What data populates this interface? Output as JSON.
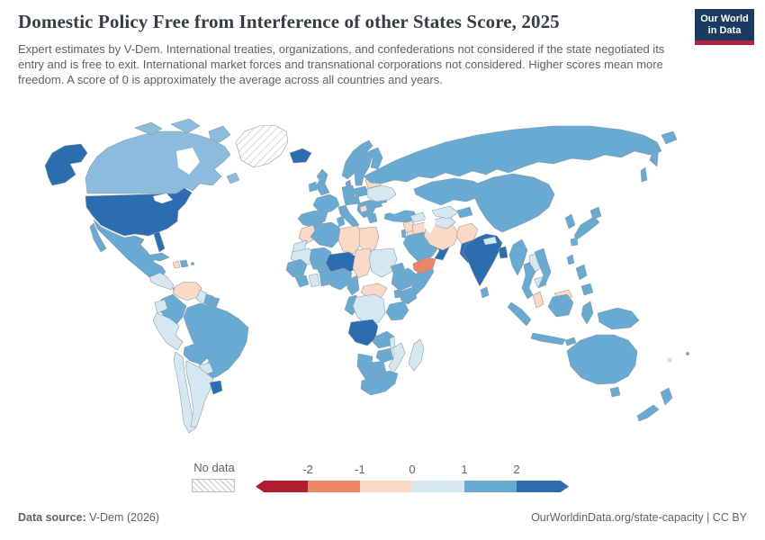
{
  "header": {
    "title": "Domestic Policy Free from Interference of other States Score, 2025",
    "subtitle": "Expert estimates by V-Dem. International treaties, organizations, and confederations not considered if the state negotiated its entry and is free to exit. International market forces and transnational corporations not considered. Higher scores mean more freedom. A score of 0 is approximately the average across all countries and years.",
    "logo": {
      "line1": "Our World",
      "line2": "in Data",
      "bg_color": "#1b3a5f",
      "accent_color": "#b6223c"
    }
  },
  "legend": {
    "no_data_label": "No data",
    "ticks": [
      "-2",
      "-1",
      "0",
      "1",
      "2"
    ],
    "colors": [
      "#b01c30",
      "#ee8567",
      "#fbd9c4",
      "#d5e7f1",
      "#69aad3",
      "#2c6db0"
    ]
  },
  "footer": {
    "source_label": "Data source:",
    "source_value": " V-Dem (2026)",
    "right_text": "OurWorldinData.org/state-capacity | CC BY"
  },
  "chart_data": {
    "type": "choropleth",
    "title": "Domestic Policy Free from Interference of other States Score, 2025",
    "value_range": [
      -2,
      2
    ],
    "legend_bins": [
      {
        "key": "b0",
        "range": "below -2"
      },
      {
        "key": "b1",
        "range": "-2 to -1"
      },
      {
        "key": "b2",
        "range": "-1 to 0"
      },
      {
        "key": "b3",
        "range": "0 to 1"
      },
      {
        "key": "b4",
        "range": "1 to 2"
      },
      {
        "key": "b4l",
        "range": "1 to 2 (lighter shade)"
      },
      {
        "key": "b5",
        "range": "above 2"
      },
      {
        "key": "nodata",
        "range": "No data"
      }
    ],
    "bin_colors": {
      "b0": "#b01c30",
      "b1": "#ee8567",
      "b2": "#fbd9c4",
      "b3": "#d5e7f1",
      "b4": "#69aad3",
      "b4l": "#8cbcdd",
      "b5": "#2c6db0",
      "nodata": "hatch"
    },
    "country_bins": {
      "alaska": "b5",
      "usa": "b5",
      "florida": "b5",
      "canada": "b4l",
      "arctic-islands-1": "b4l",
      "arctic-islands-2": "b4l",
      "arctic-islands-3": "b4l",
      "newfoundland": "b4l",
      "greenland": "nodata",
      "mexico": "b4",
      "baja": "b4",
      "central-america": "b3",
      "panama": "b4",
      "cuba": "b4",
      "haiti": "b2",
      "dominican-republic": "b4",
      "puerto-rico": "b4",
      "venezuela": "b2",
      "colombia": "b4",
      "guyana": "b3",
      "suriname": "b4",
      "french-guiana": "b4",
      "ecuador": "b3",
      "peru": "b3",
      "brazil": "b4",
      "bolivia": "b4",
      "paraguay": "b3",
      "chile": "b3",
      "argentina": "b3",
      "uruguay": "b5",
      "iceland": "b5",
      "uk": "b4",
      "ireland": "b4",
      "norway": "b4",
      "sweden": "b4",
      "finland": "b4",
      "denmark": "b4",
      "baltics": "b4",
      "poland": "b4",
      "germany": "b4",
      "france": "b4",
      "iberia": "b4",
      "italy": "b4",
      "sicily": "b4",
      "central-europe": "b4",
      "balkans": "b4",
      "bosnia": "b2",
      "greece": "b4",
      "romania-bulgaria": "b4",
      "belarus": "b2",
      "ukraine": "b3",
      "russia": "b4",
      "kamchatka": "b4",
      "chukotka": "b4",
      "sakhalin": "b4",
      "morocco": "b2",
      "western-sahara": "b3",
      "algeria": "b4",
      "tunisia": "b4",
      "libya": "b2",
      "egypt": "b2",
      "mauritania": "b3",
      "mali": "b4",
      "senegal-guinea": "b4",
      "sierra-leone-liberia": "b4",
      "ivory-coast": "b3",
      "ghana-togo-benin": "b4",
      "burkina-faso": "b4",
      "niger": "b5",
      "chad": "b2",
      "sudan": "b3",
      "nigeria": "b4",
      "cameroon": "b4",
      "central-african-republic": "b2",
      "gabon-congo": "b4",
      "drc": "b3",
      "eritrea": "b4",
      "ethiopia": "b4",
      "somalia": "b4",
      "kenya": "b4",
      "uganda": "b4",
      "tanzania": "b4",
      "angola": "b5",
      "zambia": "b4",
      "malawi": "b3",
      "mozambique": "b3",
      "madagascar": "b3",
      "zimbabwe": "b4",
      "botswana": "b4",
      "namibia": "b4",
      "south-africa": "b4",
      "turkey": "b4",
      "syria": "b2",
      "israel-lebanon": "b4",
      "jordan": "b2",
      "iraq": "b2",
      "saudi-arabia": "b4",
      "yemen": "b1",
      "oman": "b5",
      "uae": "b4",
      "iran": "b2",
      "afghanistan": "b2",
      "pakistan": "b5",
      "caucasus": "b3",
      "turkmenistan": "b3",
      "uzbekistan": "b3",
      "kyrgyzstan-tajikistan": "b4",
      "kazakhstan": "b4",
      "india": "b5",
      "nepal": "b3",
      "bangladesh": "b5",
      "sri-lanka": "b4",
      "china": "b4",
      "mongolia": "b4",
      "taiwan": "b4",
      "korea": "b4",
      "japan-hokkaido": "b4",
      "japan-honshu": "b4",
      "japan-kyushu": "b4",
      "myanmar": "b4",
      "thailand": "b4",
      "laos": "b3",
      "cambodia": "b3",
      "vietnam": "b4",
      "malaysia": "b2",
      "malaysia-borneo": "b2",
      "sumatra": "b4",
      "java": "b4",
      "kalimantan": "b4",
      "sulawesi": "b4",
      "timor": "b4",
      "new-guinea": "b4",
      "philippines-luzon": "b4",
      "philippines-mindanao": "b4",
      "australia": "b4",
      "tasmania": "b4",
      "nz-north": "b4",
      "nz-south": "b4",
      "fiji": "b4",
      "new-caledonia": "nodata"
    }
  }
}
